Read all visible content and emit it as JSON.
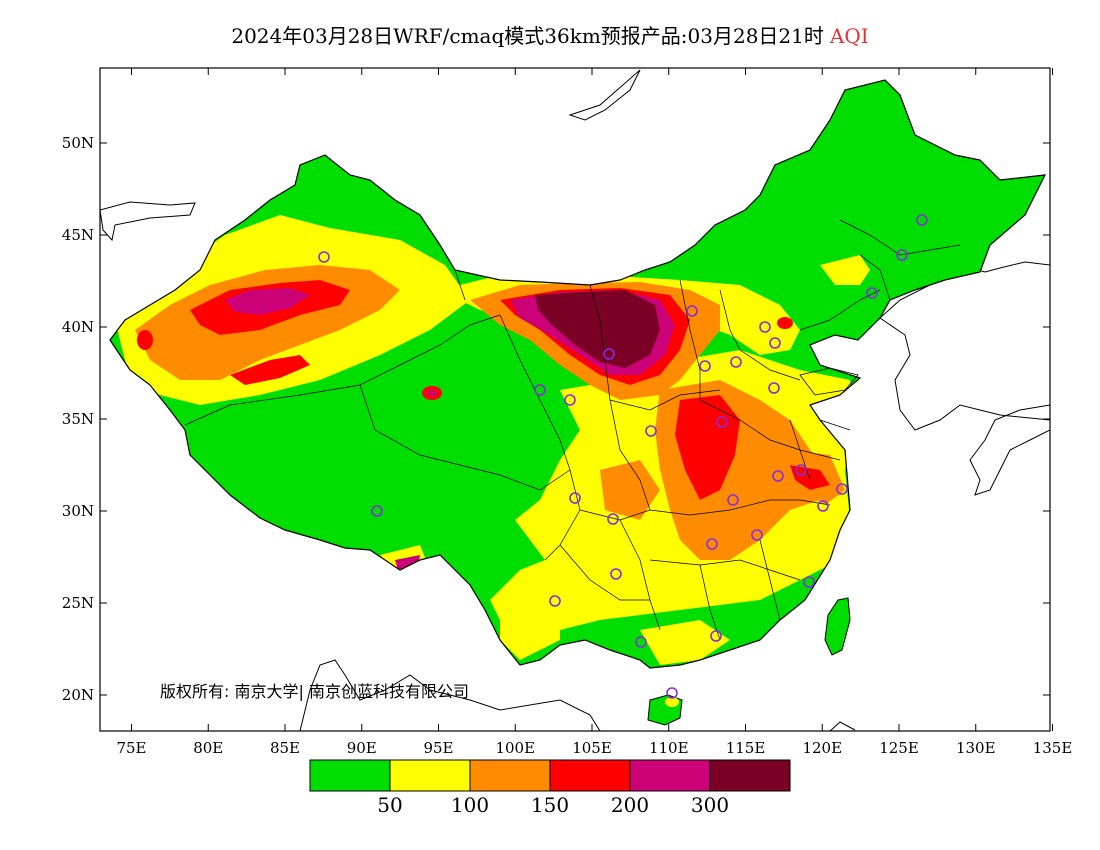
{
  "title": {
    "main": "2024年03月28日WRF/cmaq模式36km预报产品:03月28日21时",
    "variable": "AQI"
  },
  "axes": {
    "x_ticks": [
      "75E",
      "80E",
      "85E",
      "90E",
      "95E",
      "100E",
      "105E",
      "110E",
      "115E",
      "120E",
      "125E",
      "130E",
      "135E"
    ],
    "y_ticks": [
      "50N",
      "45N",
      "40N",
      "35N",
      "30N",
      "25N",
      "20N"
    ]
  },
  "copyright": "版权所有: 南京大学| 南京创蓝科技有限公司",
  "legend": {
    "colors": [
      "#00dd00",
      "#ffff00",
      "#ff8c00",
      "#ff0000",
      "#cc0077",
      "#7a0025"
    ],
    "labels": [
      "50",
      "100",
      "150",
      "200",
      "300"
    ]
  },
  "colors": {
    "water": "#ffffff",
    "border": "#000000",
    "station_marker": "#8a2be2"
  }
}
